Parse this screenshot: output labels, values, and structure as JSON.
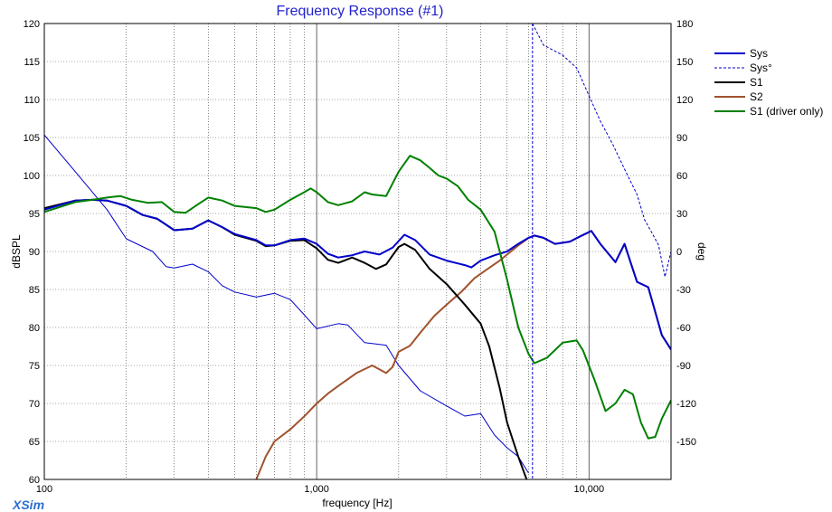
{
  "window": {
    "logo": "XSim"
  },
  "chart_data": {
    "type": "line",
    "title": "Frequency Response (#1)",
    "xlabel": "frequency [Hz]",
    "ylabel_left": "dBSPL",
    "ylabel_right": "deg",
    "x_scale": "log",
    "xlim": [
      100,
      20000
    ],
    "ylim_left": [
      60,
      120
    ],
    "ylim_right": [
      -180,
      180
    ],
    "x_tick_labels": [
      {
        "value": 100,
        "label": "100"
      },
      {
        "value": 1000,
        "label": "1,000"
      },
      {
        "value": 10000,
        "label": "10,000"
      }
    ],
    "y_left_ticks": [
      60,
      65,
      70,
      75,
      80,
      85,
      90,
      95,
      100,
      105,
      110,
      115,
      120
    ],
    "y_right_ticks": [
      -150,
      -120,
      -90,
      -60,
      -30,
      0,
      30,
      60,
      90,
      120,
      150,
      180
    ],
    "grid": true,
    "legend_position": "right",
    "series": [
      {
        "name": "Sys",
        "axis": "left",
        "color": "#0000cc",
        "style": "solid",
        "points": [
          [
            100,
            95.5
          ],
          [
            130,
            96.7
          ],
          [
            150,
            96.8
          ],
          [
            170,
            96.7
          ],
          [
            200,
            96
          ],
          [
            230,
            94.8
          ],
          [
            260,
            94.3
          ],
          [
            300,
            92.8
          ],
          [
            350,
            93
          ],
          [
            400,
            94.1
          ],
          [
            450,
            93.2
          ],
          [
            500,
            92.3
          ],
          [
            600,
            91.5
          ],
          [
            650,
            90.8
          ],
          [
            700,
            90.8
          ],
          [
            800,
            91.5
          ],
          [
            900,
            91.7
          ],
          [
            1000,
            91
          ],
          [
            1100,
            89.7
          ],
          [
            1200,
            89.2
          ],
          [
            1350,
            89.5
          ],
          [
            1500,
            90
          ],
          [
            1700,
            89.6
          ],
          [
            1900,
            90.5
          ],
          [
            2100,
            92.2
          ],
          [
            2300,
            91.5
          ],
          [
            2600,
            89.6
          ],
          [
            3000,
            88.8
          ],
          [
            3500,
            88.2
          ],
          [
            3700,
            87.9
          ],
          [
            4000,
            88.8
          ],
          [
            4500,
            89.5
          ],
          [
            5000,
            90
          ],
          [
            5500,
            91
          ],
          [
            6000,
            91.8
          ],
          [
            6300,
            92.1
          ],
          [
            6800,
            91.8
          ],
          [
            7500,
            91
          ],
          [
            8500,
            91.3
          ],
          [
            9300,
            92
          ],
          [
            10200,
            92.7
          ],
          [
            11000,
            91
          ],
          [
            12500,
            88.6
          ],
          [
            13500,
            91
          ],
          [
            14200,
            88.6
          ],
          [
            15000,
            86
          ],
          [
            16500,
            85.3
          ],
          [
            18500,
            79
          ],
          [
            20000,
            77.1
          ]
        ]
      },
      {
        "name": "Sys°",
        "axis": "right",
        "color": "#0000cc",
        "style": "dashed",
        "points": [
          [
            6200,
            180
          ],
          [
            6800,
            163
          ],
          [
            8000,
            155
          ],
          [
            9000,
            145
          ],
          [
            10000,
            123
          ],
          [
            11000,
            103
          ],
          [
            12200,
            85
          ],
          [
            13500,
            65
          ],
          [
            15000,
            45
          ],
          [
            16000,
            25
          ],
          [
            17000,
            15
          ],
          [
            18000,
            5
          ],
          [
            19000,
            -20
          ],
          [
            20000,
            0
          ]
        ]
      },
      {
        "name": "",
        "axis": "right",
        "color": "#0000cc",
        "style": "thin",
        "points": [
          [
            100,
            92
          ],
          [
            130,
            63
          ],
          [
            170,
            33
          ],
          [
            200,
            10
          ],
          [
            250,
            0
          ],
          [
            280,
            -12
          ],
          [
            300,
            -13
          ],
          [
            350,
            -10
          ],
          [
            400,
            -16
          ],
          [
            450,
            -27
          ],
          [
            500,
            -32
          ],
          [
            600,
            -36
          ],
          [
            700,
            -33
          ],
          [
            800,
            -38
          ],
          [
            900,
            -50
          ],
          [
            1000,
            -61
          ],
          [
            1200,
            -57
          ],
          [
            1300,
            -58
          ],
          [
            1500,
            -72
          ],
          [
            1800,
            -74
          ],
          [
            2000,
            -90
          ],
          [
            2400,
            -110
          ],
          [
            3000,
            -122
          ],
          [
            3500,
            -130
          ],
          [
            4000,
            -128
          ],
          [
            4500,
            -145
          ],
          [
            5000,
            -155
          ],
          [
            5500,
            -162
          ],
          [
            6000,
            -175
          ]
        ]
      },
      {
        "name": "S1",
        "axis": "left",
        "color": "#000000",
        "style": "solid",
        "points": [
          [
            100,
            95.7
          ],
          [
            130,
            96.7
          ],
          [
            150,
            96.8
          ],
          [
            170,
            96.7
          ],
          [
            200,
            96
          ],
          [
            230,
            94.8
          ],
          [
            260,
            94.3
          ],
          [
            300,
            92.8
          ],
          [
            350,
            93
          ],
          [
            400,
            94.1
          ],
          [
            450,
            93.2
          ],
          [
            500,
            92.2
          ],
          [
            600,
            91.4
          ],
          [
            650,
            90.7
          ],
          [
            700,
            90.8
          ],
          [
            800,
            91.4
          ],
          [
            900,
            91.5
          ],
          [
            1000,
            90.4
          ],
          [
            1100,
            88.9
          ],
          [
            1200,
            88.5
          ],
          [
            1350,
            89.2
          ],
          [
            1500,
            88.5
          ],
          [
            1650,
            87.7
          ],
          [
            1800,
            88.3
          ],
          [
            2000,
            90.6
          ],
          [
            2100,
            91
          ],
          [
            2300,
            90.2
          ],
          [
            2600,
            87.7
          ],
          [
            3000,
            85.7
          ],
          [
            3500,
            83
          ],
          [
            4000,
            80.5
          ],
          [
            4300,
            77.5
          ],
          [
            4700,
            72
          ],
          [
            5000,
            67.5
          ],
          [
            5500,
            63
          ],
          [
            5900,
            60
          ]
        ]
      },
      {
        "name": "S2",
        "axis": "left",
        "color": "#a0522d",
        "style": "solid",
        "points": [
          [
            600,
            60
          ],
          [
            650,
            63
          ],
          [
            700,
            65
          ],
          [
            800,
            66.6
          ],
          [
            900,
            68.3
          ],
          [
            1000,
            70
          ],
          [
            1100,
            71.3
          ],
          [
            1200,
            72.3
          ],
          [
            1400,
            74
          ],
          [
            1600,
            75
          ],
          [
            1800,
            74
          ],
          [
            1900,
            74.8
          ],
          [
            2000,
            76.8
          ],
          [
            2200,
            77.6
          ],
          [
            2400,
            79.3
          ],
          [
            2700,
            81.5
          ],
          [
            3000,
            83
          ],
          [
            3400,
            84.7
          ],
          [
            3800,
            86.5
          ],
          [
            4200,
            87.6
          ],
          [
            4700,
            88.8
          ],
          [
            5000,
            89.6
          ],
          [
            5500,
            90.8
          ],
          [
            6000,
            91.8
          ],
          [
            6300,
            92.1
          ],
          [
            6800,
            91.8
          ],
          [
            7500,
            91
          ],
          [
            8500,
            91.3
          ],
          [
            9300,
            92
          ],
          [
            10200,
            92.7
          ],
          [
            11000,
            91
          ],
          [
            12500,
            88.6
          ],
          [
            13500,
            91
          ],
          [
            14200,
            88.6
          ],
          [
            15000,
            86
          ],
          [
            16500,
            85.3
          ],
          [
            18500,
            79
          ],
          [
            20000,
            77.1
          ]
        ]
      },
      {
        "name": "S1 (driver only)",
        "axis": "left",
        "color": "#008000",
        "style": "solid",
        "points": [
          [
            100,
            95.2
          ],
          [
            130,
            96.5
          ],
          [
            150,
            96.8
          ],
          [
            170,
            97.1
          ],
          [
            190,
            97.3
          ],
          [
            210,
            96.8
          ],
          [
            240,
            96.4
          ],
          [
            270,
            96.5
          ],
          [
            300,
            95.2
          ],
          [
            330,
            95.1
          ],
          [
            370,
            96.3
          ],
          [
            400,
            97.1
          ],
          [
            450,
            96.7
          ],
          [
            500,
            96
          ],
          [
            600,
            95.7
          ],
          [
            650,
            95.2
          ],
          [
            700,
            95.5
          ],
          [
            800,
            96.8
          ],
          [
            900,
            97.8
          ],
          [
            950,
            98.3
          ],
          [
            1000,
            97.8
          ],
          [
            1100,
            96.5
          ],
          [
            1200,
            96.1
          ],
          [
            1350,
            96.6
          ],
          [
            1500,
            97.8
          ],
          [
            1600,
            97.5
          ],
          [
            1800,
            97.3
          ],
          [
            2000,
            100.5
          ],
          [
            2200,
            102.6
          ],
          [
            2400,
            102
          ],
          [
            2600,
            101
          ],
          [
            2800,
            100
          ],
          [
            3000,
            99.6
          ],
          [
            3300,
            98.6
          ],
          [
            3600,
            96.8
          ],
          [
            4000,
            95.5
          ],
          [
            4500,
            92.6
          ],
          [
            5000,
            86.3
          ],
          [
            5500,
            80
          ],
          [
            6000,
            76.5
          ],
          [
            6300,
            75.3
          ],
          [
            7000,
            76
          ],
          [
            8000,
            78
          ],
          [
            9000,
            78.3
          ],
          [
            9500,
            77
          ],
          [
            10500,
            73
          ],
          [
            11500,
            69
          ],
          [
            12500,
            70
          ],
          [
            13500,
            71.8
          ],
          [
            14500,
            71.2
          ],
          [
            15500,
            67.5
          ],
          [
            16500,
            65.4
          ],
          [
            17500,
            65.6
          ],
          [
            18500,
            68
          ],
          [
            20000,
            70.4
          ]
        ]
      }
    ]
  }
}
